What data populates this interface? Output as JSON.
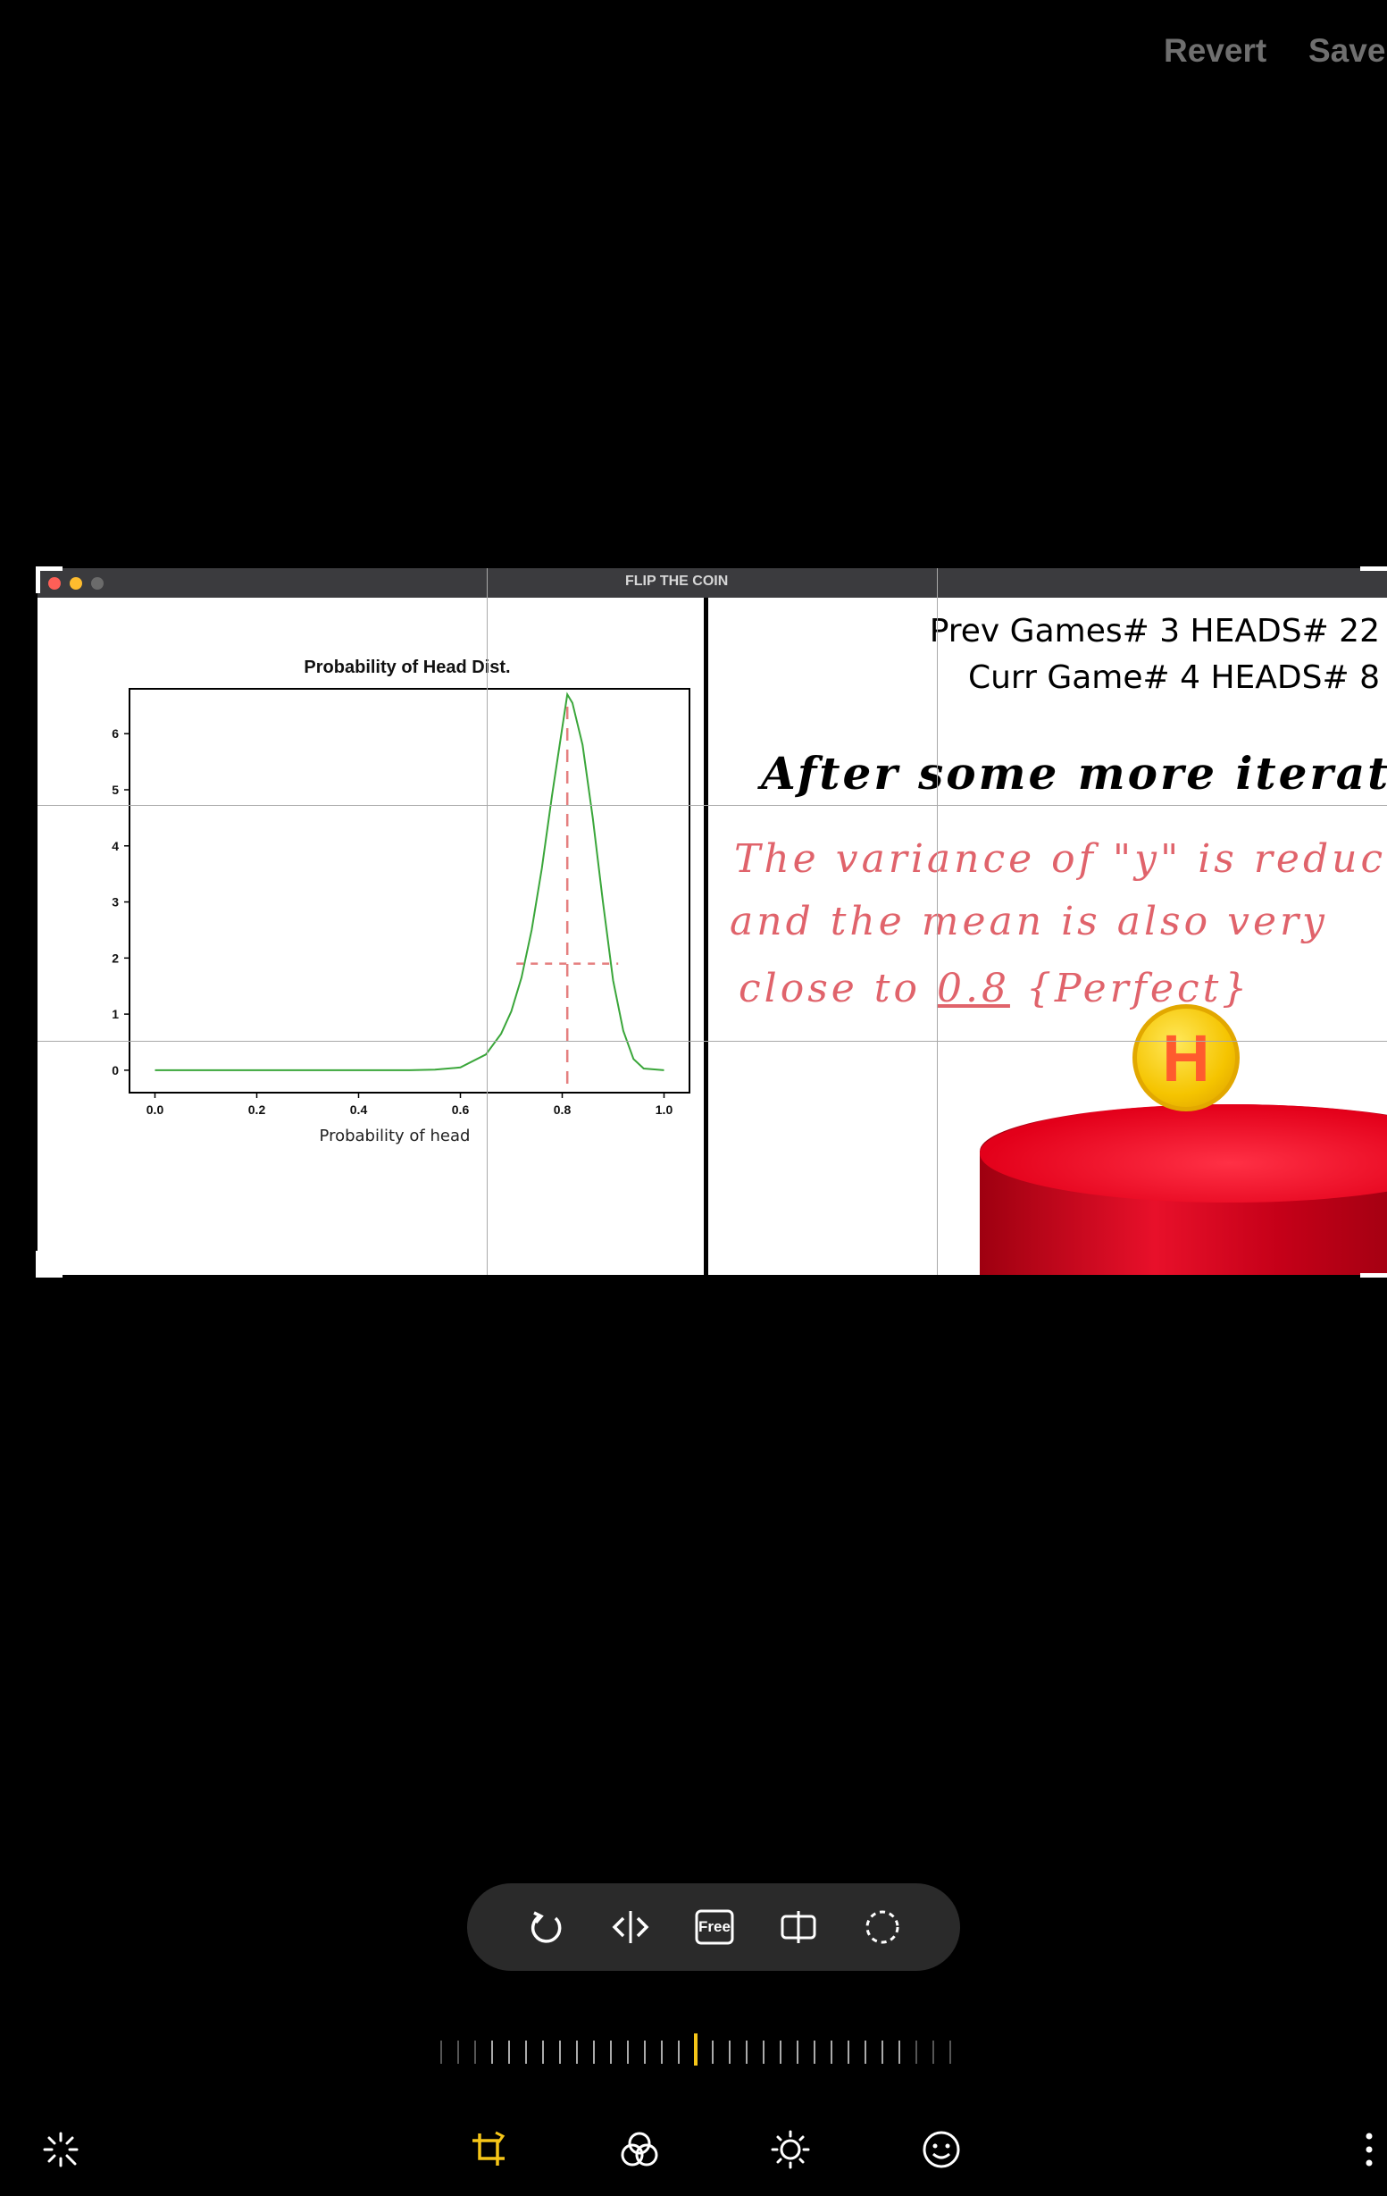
{
  "header": {
    "revert_label": "Revert",
    "save_label": "Save"
  },
  "window": {
    "title": "FLIP THE COIN"
  },
  "hud": {
    "prev_line": "Prev Games# 3 HEADS# 22",
    "curr_line": "Curr Game# 4 HEADS# 8"
  },
  "annotation": {
    "line1": "After some more iteration,",
    "line2": "The variance of \"y\" is reduced",
    "line3": "and the   mean is   also very",
    "line4_a": "close  to ",
    "line4_b": "0.8",
    "line4_c": "  {Perfect}"
  },
  "coin": {
    "label": "H"
  },
  "chart_data": {
    "type": "line",
    "title": "Probability of Head Dist.",
    "xlabel": "Probability of head",
    "ylabel": "",
    "xlim": [
      -0.05,
      1.05
    ],
    "ylim": [
      -0.4,
      6.8
    ],
    "xticks": [
      "0.0",
      "0.2",
      "0.4",
      "0.6",
      "0.8",
      "1.0"
    ],
    "yticks": [
      "0",
      "1",
      "2",
      "3",
      "4",
      "5",
      "6"
    ],
    "series": [
      {
        "name": "density",
        "color": "#3aa63a",
        "x": [
          0.0,
          0.1,
          0.2,
          0.3,
          0.4,
          0.5,
          0.55,
          0.6,
          0.65,
          0.68,
          0.7,
          0.72,
          0.74,
          0.76,
          0.78,
          0.8,
          0.81,
          0.82,
          0.84,
          0.86,
          0.88,
          0.9,
          0.92,
          0.94,
          0.96,
          1.0
        ],
        "values": [
          0,
          0,
          0,
          0,
          0,
          0,
          0.01,
          0.05,
          0.28,
          0.65,
          1.05,
          1.65,
          2.5,
          3.6,
          4.9,
          6.1,
          6.7,
          6.55,
          5.8,
          4.5,
          3.0,
          1.6,
          0.7,
          0.2,
          0.03,
          0
        ]
      }
    ],
    "reference": {
      "mean": 0.81,
      "mean_color": "#e57f7f",
      "spread_y": 1.9,
      "spread_x": [
        0.71,
        0.91
      ]
    }
  },
  "toolbar": {
    "rotate_icon": "rotate-icon",
    "flip_icon": "flip-horizontal-icon",
    "free_label": "Free",
    "ratio_icon": "aspect-ratio-icon",
    "lasso_icon": "lasso-icon"
  },
  "bottom_nav": [
    "auto-enhance-icon",
    "crop-icon",
    "filter-icon",
    "brightness-icon",
    "sticker-icon",
    "more-icon"
  ],
  "colors": {
    "accent": "#f5c518",
    "muted_text": "#6f6f6f",
    "pill_bg": "#2a2a2a"
  }
}
